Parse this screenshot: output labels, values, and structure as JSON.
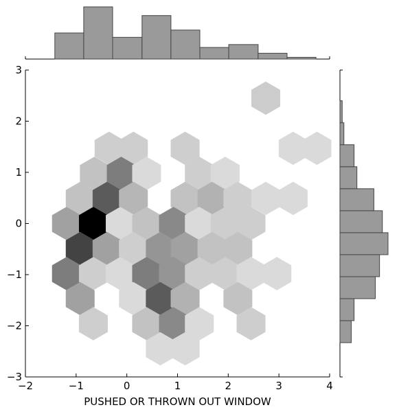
{
  "chart_data": {
    "type": "hexbin-joint",
    "xlabel": "PUSHED OR THROWN OUT WINDOW",
    "ylabel": "",
    "xlim": [
      -2,
      4
    ],
    "ylim": [
      -3,
      3
    ],
    "xticks": [
      -2,
      -1,
      0,
      1,
      2,
      3,
      4
    ],
    "yticks": [
      -3,
      -2,
      -1,
      0,
      1,
      2,
      3
    ],
    "xtick_labels": [
      "−2",
      "−1",
      "0",
      "1",
      "2",
      "3",
      "4"
    ],
    "ytick_labels": [
      "−3",
      "−2",
      "−1",
      "0",
      "1",
      "2",
      "3"
    ],
    "colormap": "grays",
    "hexbins": [
      {
        "x": 2.74,
        "y": 2.45,
        "count": 0.15
      },
      {
        "x": -0.35,
        "y": 1.47,
        "count": 0.14
      },
      {
        "x": 0.13,
        "y": 1.47,
        "count": 0.14
      },
      {
        "x": 1.15,
        "y": 1.47,
        "count": 0.14
      },
      {
        "x": 3.28,
        "y": 1.47,
        "count": 0.09
      },
      {
        "x": 3.75,
        "y": 1.47,
        "count": 0.09
      },
      {
        "x": -0.64,
        "y": 0.98,
        "count": 0.19
      },
      {
        "x": -0.11,
        "y": 0.98,
        "count": 0.48
      },
      {
        "x": 0.39,
        "y": 0.98,
        "count": 0.09
      },
      {
        "x": 1.43,
        "y": 0.98,
        "count": 0.14
      },
      {
        "x": 1.94,
        "y": 0.98,
        "count": 0.09
      },
      {
        "x": -0.92,
        "y": 0.49,
        "count": 0.19
      },
      {
        "x": -0.39,
        "y": 0.49,
        "count": 0.62
      },
      {
        "x": 0.13,
        "y": 0.49,
        "count": 0.24
      },
      {
        "x": 1.15,
        "y": 0.49,
        "count": 0.19
      },
      {
        "x": 1.68,
        "y": 0.49,
        "count": 0.26
      },
      {
        "x": 2.19,
        "y": 0.49,
        "count": 0.14
      },
      {
        "x": 2.74,
        "y": 0.49,
        "count": 0.09
      },
      {
        "x": 3.28,
        "y": 0.49,
        "count": 0.09
      },
      {
        "x": -1.19,
        "y": 0.0,
        "count": 0.33
      },
      {
        "x": -0.66,
        "y": 0.0,
        "count": 1.0
      },
      {
        "x": -0.13,
        "y": 0.0,
        "count": 0.09
      },
      {
        "x": 0.39,
        "y": 0.0,
        "count": 0.19
      },
      {
        "x": 0.92,
        "y": 0.0,
        "count": 0.43
      },
      {
        "x": 1.43,
        "y": 0.0,
        "count": 0.09
      },
      {
        "x": 1.94,
        "y": 0.0,
        "count": 0.14
      },
      {
        "x": 2.45,
        "y": 0.0,
        "count": 0.14
      },
      {
        "x": -0.92,
        "y": -0.49,
        "count": 0.72
      },
      {
        "x": -0.39,
        "y": -0.49,
        "count": 0.33
      },
      {
        "x": 0.13,
        "y": -0.49,
        "count": 0.14
      },
      {
        "x": 0.66,
        "y": -0.49,
        "count": 0.38
      },
      {
        "x": 1.15,
        "y": -0.49,
        "count": 0.33
      },
      {
        "x": 1.68,
        "y": -0.49,
        "count": 0.19
      },
      {
        "x": 2.19,
        "y": -0.49,
        "count": 0.19
      },
      {
        "x": -1.19,
        "y": -0.98,
        "count": 0.48
      },
      {
        "x": -0.66,
        "y": -0.98,
        "count": 0.14
      },
      {
        "x": -0.13,
        "y": -0.98,
        "count": 0.09
      },
      {
        "x": 0.39,
        "y": -0.98,
        "count": 0.48
      },
      {
        "x": 0.92,
        "y": -0.98,
        "count": 0.38
      },
      {
        "x": 1.43,
        "y": -0.98,
        "count": 0.14
      },
      {
        "x": 1.94,
        "y": -0.98,
        "count": 0.14
      },
      {
        "x": 2.45,
        "y": -0.98,
        "count": 0.09
      },
      {
        "x": 2.96,
        "y": -0.98,
        "count": 0.09
      },
      {
        "x": -0.92,
        "y": -1.47,
        "count": 0.33
      },
      {
        "x": 0.13,
        "y": -1.47,
        "count": 0.09
      },
      {
        "x": 0.66,
        "y": -1.47,
        "count": 0.62
      },
      {
        "x": 1.15,
        "y": -1.47,
        "count": 0.26
      },
      {
        "x": 2.19,
        "y": -1.47,
        "count": 0.19
      },
      {
        "x": -0.66,
        "y": -1.96,
        "count": 0.14
      },
      {
        "x": 0.39,
        "y": -1.96,
        "count": 0.19
      },
      {
        "x": 0.92,
        "y": -1.96,
        "count": 0.43
      },
      {
        "x": 1.43,
        "y": -1.96,
        "count": 0.09
      },
      {
        "x": 2.45,
        "y": -1.96,
        "count": 0.14
      },
      {
        "x": 0.66,
        "y": -2.45,
        "count": 0.09
      },
      {
        "x": 1.15,
        "y": -2.45,
        "count": 0.09
      }
    ],
    "top_histogram": {
      "bin_edges": [
        -1.42,
        -0.85,
        -0.28,
        0.3,
        0.87,
        1.44,
        2.01,
        2.59,
        3.16,
        3.73
      ],
      "counts": [
        9,
        18,
        7.5,
        15,
        10,
        4,
        5,
        2,
        0.6
      ]
    },
    "right_histogram": {
      "bin_edges": [
        -2.33,
        -1.9,
        -1.47,
        -1.04,
        -0.61,
        -0.18,
        0.25,
        0.68,
        1.11,
        1.54,
        1.97,
        2.4
      ],
      "counts": [
        4,
        5,
        12.5,
        14,
        17,
        15,
        12,
        6,
        5,
        1.4,
        0.8
      ]
    }
  }
}
